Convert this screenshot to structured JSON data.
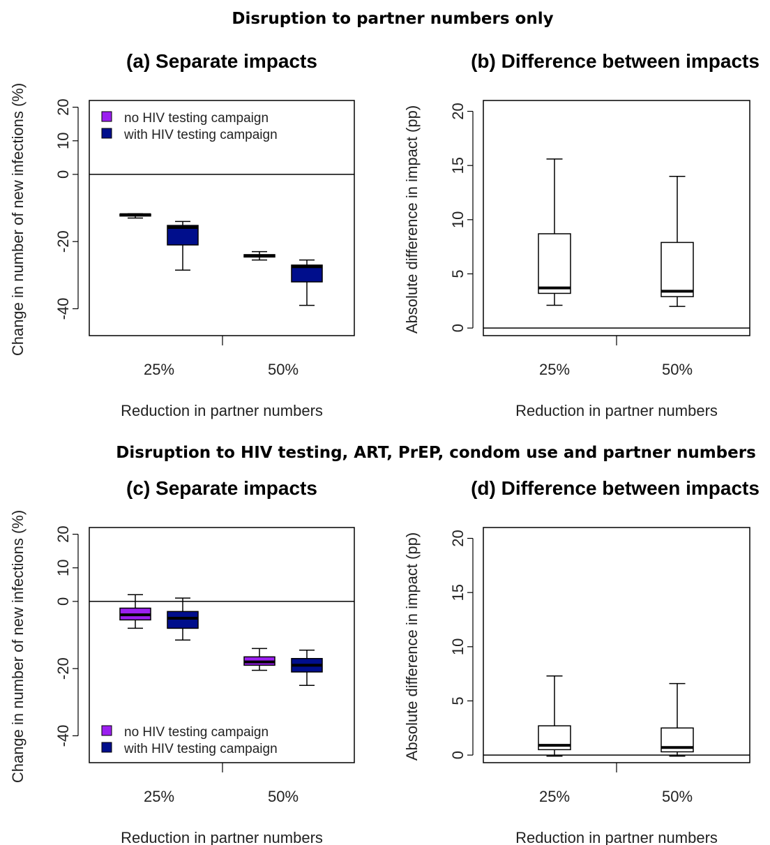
{
  "headings": [
    "Disruption to partner numbers only",
    "Disruption to HIV testing, ART, PrEP, condom use and partner numbers"
  ],
  "colors": {
    "no_campaign": "#9b1ff0",
    "with_campaign": "#000e8c",
    "plain": "#ffffff"
  },
  "chart_data": [
    {
      "id": "a",
      "type": "boxplot",
      "title": "(a) Separate impacts",
      "xlabel": "Reduction in partner numbers",
      "ylabel": "Change in number of new infections (%)",
      "categories": [
        "25%",
        "50%"
      ],
      "ylim": [
        -48,
        22
      ],
      "yticks": [
        -40,
        -20,
        0,
        10,
        20
      ],
      "hline": 0,
      "legend": {
        "position": "top-left",
        "entries": [
          "no HIV testing campaign",
          "with HIV testing campaign"
        ]
      },
      "series": [
        {
          "name": "no HIV testing campaign",
          "color": "#9b1ff0",
          "boxes": [
            {
              "min": -13,
              "q1": -12.4,
              "median": -12,
              "q3": -11.8,
              "max": -11.7
            },
            {
              "min": -25.5,
              "q1": -24.6,
              "median": -24.2,
              "q3": -23.9,
              "max": -23
            }
          ]
        },
        {
          "name": "with HIV testing campaign",
          "color": "#000e8c",
          "boxes": [
            {
              "min": -28.5,
              "q1": -21,
              "median": -15.8,
              "q3": -15.2,
              "max": -14
            },
            {
              "min": -39,
              "q1": -32,
              "median": -27.5,
              "q3": -27,
              "max": -25.5
            }
          ]
        }
      ]
    },
    {
      "id": "b",
      "type": "boxplot",
      "title": "(b) Difference between impacts",
      "xlabel": "Reduction in partner numbers",
      "ylabel": "Absolute difference in impact (pp)",
      "categories": [
        "25%",
        "50%"
      ],
      "ylim": [
        -0.7,
        21
      ],
      "yticks": [
        0,
        5,
        10,
        15,
        20
      ],
      "hline": 0,
      "series": [
        {
          "color": "#ffffff",
          "boxes": [
            {
              "min": 2.1,
              "q1": 3.2,
              "median": 3.7,
              "q3": 8.7,
              "max": 15.6
            },
            {
              "min": 2.0,
              "q1": 2.9,
              "median": 3.4,
              "q3": 7.9,
              "max": 14.0
            }
          ]
        }
      ]
    },
    {
      "id": "c",
      "type": "boxplot",
      "title": "(c) Separate impacts",
      "xlabel": "Reduction in partner numbers",
      "ylabel": "Change in number of new infections (%)",
      "categories": [
        "25%",
        "50%"
      ],
      "ylim": [
        -48,
        22
      ],
      "yticks": [
        -40,
        -20,
        0,
        10,
        20
      ],
      "hline": 0,
      "legend": {
        "position": "bottom-left",
        "entries": [
          "no HIV testing campaign",
          "with HIV testing campaign"
        ]
      },
      "series": [
        {
          "name": "no HIV testing campaign",
          "color": "#9b1ff0",
          "boxes": [
            {
              "min": -8,
              "q1": -5.5,
              "median": -4,
              "q3": -2,
              "max": 2
            },
            {
              "min": -20.5,
              "q1": -19,
              "median": -18,
              "q3": -16.5,
              "max": -14
            }
          ]
        },
        {
          "name": "with HIV testing campaign",
          "color": "#000e8c",
          "boxes": [
            {
              "min": -11.5,
              "q1": -8,
              "median": -5,
              "q3": -3,
              "max": 1
            },
            {
              "min": -25,
              "q1": -21,
              "median": -19,
              "q3": -17,
              "max": -14.5
            }
          ]
        }
      ]
    },
    {
      "id": "d",
      "type": "boxplot",
      "title": "(d) Difference between impacts",
      "xlabel": "Reduction in partner numbers",
      "ylabel": "Absolute difference in impact (pp)",
      "categories": [
        "25%",
        "50%"
      ],
      "ylim": [
        -0.7,
        21
      ],
      "yticks": [
        0,
        5,
        10,
        15,
        20
      ],
      "hline": 0,
      "series": [
        {
          "color": "#ffffff",
          "boxes": [
            {
              "min": -0.1,
              "q1": 0.5,
              "median": 0.9,
              "q3": 2.7,
              "max": 7.3
            },
            {
              "min": -0.1,
              "q1": 0.3,
              "median": 0.7,
              "q3": 2.5,
              "max": 6.6
            }
          ]
        }
      ]
    }
  ]
}
